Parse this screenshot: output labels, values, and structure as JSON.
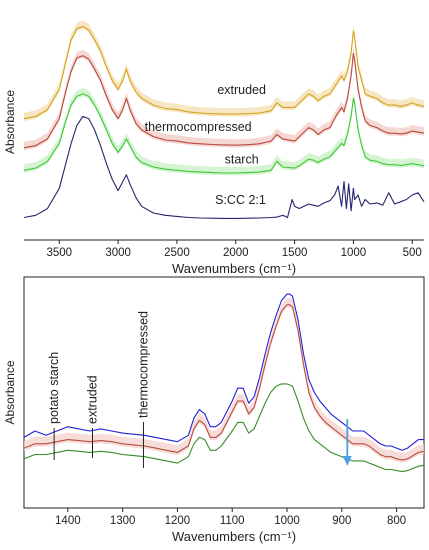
{
  "chart_data": [
    {
      "type": "line",
      "ylabel": "Absorbance",
      "xlabel": "Wavenumbers (cm⁻¹)",
      "xlim": [
        3800,
        400
      ],
      "xticks": [
        3500,
        3000,
        2500,
        2000,
        1500,
        1000,
        500
      ],
      "series": [
        {
          "name": "extruded",
          "color": "#d6a21a",
          "fill": "#f3ddb0",
          "x": [
            3800,
            3700,
            3600,
            3500,
            3450,
            3400,
            3350,
            3300,
            3250,
            3200,
            3150,
            3100,
            3050,
            3000,
            2960,
            2930,
            2900,
            2850,
            2800,
            2700,
            2600,
            2500,
            2400,
            2300,
            2200,
            2100,
            2000,
            1900,
            1800,
            1700,
            1650,
            1600,
            1500,
            1460,
            1420,
            1380,
            1340,
            1300,
            1250,
            1200,
            1150,
            1100,
            1080,
            1050,
            1020,
            1000,
            990,
            960,
            930,
            900,
            860,
            800,
            750,
            700,
            650,
            600,
            550,
            500,
            450,
            400
          ],
          "y": [
            0.59,
            0.6,
            0.63,
            0.72,
            0.83,
            0.94,
            0.99,
            1.0,
            0.985,
            0.94,
            0.89,
            0.82,
            0.76,
            0.72,
            0.76,
            0.81,
            0.76,
            0.71,
            0.68,
            0.65,
            0.635,
            0.63,
            0.62,
            0.615,
            0.612,
            0.61,
            0.61,
            0.612,
            0.615,
            0.625,
            0.66,
            0.64,
            0.64,
            0.66,
            0.68,
            0.7,
            0.69,
            0.67,
            0.69,
            0.7,
            0.74,
            0.78,
            0.76,
            0.8,
            0.88,
            0.98,
            0.95,
            0.82,
            0.76,
            0.7,
            0.69,
            0.68,
            0.66,
            0.65,
            0.65,
            0.645,
            0.65,
            0.66,
            0.65,
            0.645
          ]
        },
        {
          "name": "thermocompressed",
          "color": "#b8483a",
          "fill": "#f2c9c4",
          "x": [
            3800,
            3700,
            3600,
            3500,
            3450,
            3400,
            3350,
            3300,
            3250,
            3200,
            3150,
            3100,
            3050,
            3000,
            2960,
            2930,
            2900,
            2850,
            2800,
            2700,
            2600,
            2500,
            2400,
            2300,
            2200,
            2100,
            2000,
            1900,
            1800,
            1700,
            1650,
            1600,
            1500,
            1460,
            1420,
            1380,
            1340,
            1300,
            1250,
            1200,
            1150,
            1100,
            1080,
            1050,
            1020,
            1000,
            990,
            960,
            930,
            900,
            860,
            800,
            750,
            700,
            650,
            600,
            550,
            500,
            450,
            400
          ],
          "y": [
            0.46,
            0.47,
            0.5,
            0.59,
            0.7,
            0.8,
            0.86,
            0.87,
            0.855,
            0.81,
            0.76,
            0.69,
            0.63,
            0.59,
            0.63,
            0.68,
            0.63,
            0.57,
            0.54,
            0.51,
            0.495,
            0.49,
            0.482,
            0.478,
            0.475,
            0.473,
            0.472,
            0.474,
            0.478,
            0.49,
            0.52,
            0.5,
            0.49,
            0.51,
            0.53,
            0.55,
            0.54,
            0.52,
            0.54,
            0.55,
            0.6,
            0.64,
            0.62,
            0.68,
            0.78,
            0.88,
            0.85,
            0.72,
            0.64,
            0.58,
            0.56,
            0.55,
            0.535,
            0.525,
            0.525,
            0.522,
            0.525,
            0.535,
            0.53,
            0.525
          ]
        },
        {
          "name": "starch",
          "color": "#3ccb34",
          "fill": "#c8efc4",
          "x": [
            3800,
            3700,
            3600,
            3500,
            3450,
            3400,
            3350,
            3300,
            3250,
            3200,
            3150,
            3100,
            3050,
            3000,
            2960,
            2930,
            2900,
            2850,
            2800,
            2700,
            2600,
            2500,
            2400,
            2300,
            2200,
            2100,
            2000,
            1900,
            1800,
            1700,
            1650,
            1600,
            1500,
            1460,
            1420,
            1380,
            1340,
            1300,
            1250,
            1200,
            1150,
            1100,
            1080,
            1050,
            1020,
            1000,
            990,
            960,
            930,
            900,
            860,
            800,
            750,
            700,
            650,
            600,
            550,
            500,
            450,
            400
          ],
          "y": [
            0.36,
            0.37,
            0.4,
            0.48,
            0.57,
            0.65,
            0.69,
            0.7,
            0.69,
            0.65,
            0.6,
            0.54,
            0.48,
            0.44,
            0.47,
            0.5,
            0.47,
            0.42,
            0.395,
            0.375,
            0.365,
            0.36,
            0.355,
            0.352,
            0.35,
            0.348,
            0.348,
            0.35,
            0.352,
            0.36,
            0.4,
            0.375,
            0.37,
            0.38,
            0.395,
            0.41,
            0.405,
            0.395,
            0.41,
            0.42,
            0.45,
            0.48,
            0.47,
            0.52,
            0.6,
            0.68,
            0.66,
            0.54,
            0.47,
            0.42,
            0.405,
            0.4,
            0.39,
            0.385,
            0.385,
            0.382,
            0.385,
            0.39,
            0.385,
            0.38
          ]
        },
        {
          "name": "S:CC 2:1",
          "color": "#24246e",
          "fill": null,
          "x": [
            3800,
            3700,
            3600,
            3500,
            3450,
            3400,
            3350,
            3300,
            3250,
            3200,
            3150,
            3100,
            3050,
            3000,
            2960,
            2930,
            2900,
            2850,
            2800,
            2700,
            2600,
            2500,
            2400,
            2300,
            2200,
            2100,
            2000,
            1900,
            1800,
            1700,
            1650,
            1600,
            1560,
            1520,
            1500,
            1460,
            1420,
            1380,
            1340,
            1300,
            1250,
            1200,
            1160,
            1130,
            1100,
            1080,
            1060,
            1040,
            1020,
            1000,
            990,
            960,
            930,
            900,
            860,
            800,
            750,
            700,
            650,
            600,
            550,
            500,
            450,
            400
          ],
          "y": [
            0.15,
            0.16,
            0.19,
            0.28,
            0.38,
            0.48,
            0.56,
            0.6,
            0.59,
            0.54,
            0.47,
            0.39,
            0.32,
            0.27,
            0.31,
            0.34,
            0.3,
            0.24,
            0.2,
            0.17,
            0.16,
            0.155,
            0.15,
            0.148,
            0.147,
            0.146,
            0.146,
            0.147,
            0.148,
            0.15,
            0.152,
            0.16,
            0.15,
            0.23,
            0.2,
            0.19,
            0.2,
            0.21,
            0.205,
            0.2,
            0.215,
            0.225,
            0.25,
            0.29,
            0.2,
            0.31,
            0.19,
            0.3,
            0.18,
            0.28,
            0.23,
            0.25,
            0.2,
            0.23,
            0.21,
            0.215,
            0.205,
            0.26,
            0.21,
            0.22,
            0.23,
            0.25,
            0.26,
            0.22
          ]
        }
      ],
      "annotations": [
        {
          "text": "extruded",
          "x": 1950,
          "y": 0.7
        },
        {
          "text": "thermocompressed",
          "x": 2320,
          "y": 0.535
        },
        {
          "text": "starch",
          "x": 1950,
          "y": 0.39
        },
        {
          "text": "S:CC 2:1",
          "x": 1960,
          "y": 0.21
        }
      ],
      "ylim": [
        0.05,
        1.1
      ]
    },
    {
      "type": "line",
      "ylabel": "Absorbance",
      "xlabel": "Wavenumbers (cm⁻¹)",
      "xlim": [
        1480,
        750
      ],
      "xticks": [
        1400,
        1300,
        1200,
        1100,
        1000,
        900,
        800
      ],
      "series": [
        {
          "name": "blue",
          "color": "#1f1fd8",
          "fill": null,
          "x": [
            1480,
            1460,
            1440,
            1420,
            1400,
            1380,
            1360,
            1340,
            1320,
            1300,
            1280,
            1260,
            1240,
            1220,
            1200,
            1180,
            1170,
            1160,
            1150,
            1140,
            1130,
            1120,
            1100,
            1090,
            1080,
            1070,
            1060,
            1050,
            1040,
            1030,
            1020,
            1010,
            1000,
            995,
            990,
            980,
            970,
            960,
            950,
            940,
            930,
            920,
            910,
            900,
            890,
            880,
            870,
            860,
            850,
            840,
            830,
            820,
            810,
            800,
            790,
            780,
            770,
            760,
            750
          ],
          "y": [
            0.33,
            0.36,
            0.34,
            0.36,
            0.38,
            0.37,
            0.36,
            0.37,
            0.36,
            0.35,
            0.345,
            0.34,
            0.33,
            0.32,
            0.31,
            0.34,
            0.42,
            0.46,
            0.44,
            0.38,
            0.38,
            0.4,
            0.5,
            0.56,
            0.56,
            0.49,
            0.52,
            0.61,
            0.72,
            0.82,
            0.9,
            0.97,
            1.0,
            1.0,
            0.99,
            0.88,
            0.72,
            0.6,
            0.54,
            0.5,
            0.47,
            0.44,
            0.42,
            0.4,
            0.38,
            0.36,
            0.36,
            0.36,
            0.34,
            0.32,
            0.3,
            0.29,
            0.29,
            0.28,
            0.27,
            0.28,
            0.3,
            0.32,
            0.32
          ]
        },
        {
          "name": "red",
          "color": "#b84c3c",
          "fill": "#f4d2cc",
          "x": [
            1480,
            1460,
            1440,
            1420,
            1400,
            1380,
            1360,
            1340,
            1320,
            1300,
            1280,
            1260,
            1240,
            1220,
            1200,
            1180,
            1170,
            1160,
            1150,
            1140,
            1130,
            1120,
            1100,
            1090,
            1080,
            1070,
            1060,
            1050,
            1040,
            1030,
            1020,
            1010,
            1000,
            995,
            990,
            980,
            970,
            960,
            950,
            940,
            930,
            920,
            910,
            900,
            890,
            880,
            870,
            860,
            850,
            840,
            830,
            820,
            810,
            800,
            790,
            780,
            770,
            760,
            750
          ],
          "y": [
            0.28,
            0.3,
            0.3,
            0.31,
            0.32,
            0.315,
            0.31,
            0.315,
            0.31,
            0.3,
            0.295,
            0.29,
            0.28,
            0.27,
            0.26,
            0.29,
            0.37,
            0.41,
            0.39,
            0.33,
            0.33,
            0.35,
            0.45,
            0.5,
            0.5,
            0.44,
            0.47,
            0.56,
            0.67,
            0.77,
            0.85,
            0.92,
            0.95,
            0.95,
            0.94,
            0.83,
            0.67,
            0.54,
            0.47,
            0.43,
            0.4,
            0.38,
            0.36,
            0.34,
            0.32,
            0.3,
            0.3,
            0.3,
            0.29,
            0.27,
            0.25,
            0.24,
            0.24,
            0.23,
            0.225,
            0.23,
            0.245,
            0.26,
            0.265
          ]
        },
        {
          "name": "green",
          "color": "#3c8a2c",
          "fill": null,
          "x": [
            1480,
            1460,
            1440,
            1420,
            1400,
            1380,
            1360,
            1340,
            1320,
            1300,
            1280,
            1260,
            1240,
            1220,
            1200,
            1180,
            1170,
            1160,
            1150,
            1140,
            1130,
            1120,
            1100,
            1090,
            1080,
            1070,
            1060,
            1050,
            1040,
            1030,
            1020,
            1010,
            1000,
            995,
            990,
            980,
            970,
            960,
            950,
            940,
            930,
            920,
            910,
            900,
            890,
            880,
            870,
            860,
            850,
            840,
            830,
            820,
            810,
            800,
            790,
            780,
            770,
            760,
            750
          ],
          "y": [
            0.23,
            0.25,
            0.25,
            0.26,
            0.27,
            0.265,
            0.26,
            0.265,
            0.26,
            0.25,
            0.245,
            0.24,
            0.23,
            0.22,
            0.21,
            0.24,
            0.3,
            0.33,
            0.32,
            0.27,
            0.27,
            0.29,
            0.36,
            0.4,
            0.4,
            0.35,
            0.37,
            0.43,
            0.49,
            0.54,
            0.57,
            0.58,
            0.58,
            0.575,
            0.57,
            0.5,
            0.42,
            0.36,
            0.32,
            0.3,
            0.28,
            0.26,
            0.25,
            0.24,
            0.23,
            0.22,
            0.22,
            0.22,
            0.21,
            0.2,
            0.19,
            0.18,
            0.18,
            0.175,
            0.17,
            0.175,
            0.185,
            0.195,
            0.2
          ]
        }
      ],
      "annotations": [
        {
          "text": "potato starch",
          "x": 1425
        },
        {
          "text": "extruded",
          "x": 1355
        },
        {
          "text": "thermocompressed",
          "x": 1262
        }
      ],
      "arrow": {
        "x": 890,
        "color": "#4aa3e0"
      },
      "ylim": [
        0.0,
        1.08
      ]
    }
  ]
}
